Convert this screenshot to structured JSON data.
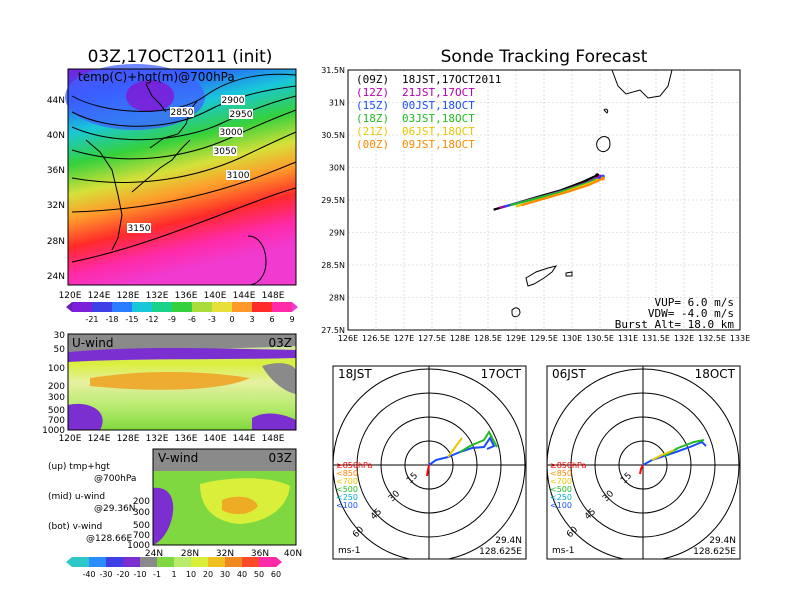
{
  "left_title": "03Z,17OCT2011 (init)",
  "right_title": "Sonde Tracking Forecast",
  "top_map": {
    "label": "temp(C)+hgt(m)@700hPa",
    "x_ticks": [
      "120E",
      "124E",
      "128E",
      "132E",
      "136E",
      "140E",
      "144E",
      "148E"
    ],
    "y_ticks": [
      "44N",
      "40N",
      "36N",
      "32N",
      "28N",
      "24N"
    ],
    "contour_labels": [
      "2850",
      "2900",
      "2950",
      "3000",
      "3050",
      "3100",
      "3150"
    ],
    "colorbar": [
      "-21",
      "-18",
      "-15",
      "-12",
      "-9",
      "-6",
      "-3",
      "0",
      "3",
      "6",
      "9"
    ]
  },
  "u_panel": {
    "label": "U-wind",
    "time": "03Z",
    "y_ticks": [
      "30",
      "50",
      "100",
      "200",
      "300",
      "500",
      "700",
      "1000"
    ],
    "x_ticks": [
      "120E",
      "124E",
      "128E",
      "132E",
      "136E",
      "140E",
      "144E",
      "148E"
    ]
  },
  "v_panel": {
    "label": "V-wind",
    "time": "03Z",
    "y_ticks": [
      "200",
      "300",
      "500",
      "700",
      "1000"
    ],
    "x_ticks": [
      "24N",
      "28N",
      "32N",
      "36N",
      "40N"
    ]
  },
  "legend_notes": [
    {
      "line1": "(up) tmp+hgt",
      "line2": "@700hPa"
    },
    {
      "line1": "(mid) u-wind",
      "line2": "@29.36N"
    },
    {
      "line1": "(bot) v-wind",
      "line2": "@128.66E"
    }
  ],
  "bottom_colorbar": [
    "-40",
    "-30",
    "-20",
    "-10",
    "-1",
    "1",
    "10",
    "20",
    "30",
    "40",
    "50",
    "60"
  ],
  "track_map": {
    "legend": [
      {
        "run": "(09Z)",
        "time": "18JST,17OCT2011",
        "color": "#000000"
      },
      {
        "run": "(12Z)",
        "time": "21JST,17OCT",
        "color": "#b000b0"
      },
      {
        "run": "(15Z)",
        "time": "00JST,18OCT",
        "color": "#1a4dff"
      },
      {
        "run": "(18Z)",
        "time": "03JST,18OCT",
        "color": "#22bb22"
      },
      {
        "run": "(21Z)",
        "time": "06JST,18OCT",
        "color": "#e8c800"
      },
      {
        "run": "(00Z)",
        "time": "09JST,18OCT",
        "color": "#ff8800"
      }
    ],
    "params": {
      "vup": "VUP= 6.0 m/s",
      "vdw": "VDW= -4.0 m/s",
      "burst": "Burst Alt= 18.0 km"
    }
  },
  "polar_left": {
    "time": "18JST",
    "date": "17OCT",
    "lat": "29.4N",
    "lon": "128.625E",
    "unit": "ms-1",
    "rings": [
      "15",
      "30",
      "45",
      "60"
    ]
  },
  "polar_right": {
    "time": "06JST",
    "date": "18OCT",
    "lat": "29.4N",
    "lon": "128.625E",
    "unit": "ms-1",
    "rings": [
      "15",
      "30",
      "45",
      "60"
    ]
  },
  "polar_legend": [
    {
      "text": "≥850hPa",
      "color": "#ff0000"
    },
    {
      "text": "<850",
      "color": "#ff8800"
    },
    {
      "text": "<700",
      "color": "#e8c800"
    },
    {
      "text": "<500",
      "color": "#22bb22"
    },
    {
      "text": "<250",
      "color": "#00b0d0"
    },
    {
      "text": "<100",
      "color": "#1a4dff"
    }
  ],
  "chart_data": [
    {
      "type": "line",
      "title": "Sonde Tracking Forecast",
      "x_ticks": [
        "126E",
        "126.5E",
        "127E",
        "127.5E",
        "128E",
        "128.5E",
        "129E",
        "129.5E",
        "130E",
        "130.5E",
        "131E",
        "131.5E",
        "132E",
        "132.5E",
        "133E"
      ],
      "y_ticks": [
        "31.5N",
        "31N",
        "30.5N",
        "30N",
        "29.5N",
        "29N",
        "28.5N",
        "28N",
        "27.5N"
      ],
      "xlim": [
        126,
        133
      ],
      "ylim": [
        27.5,
        31.5
      ],
      "series": [
        {
          "name": "(09Z)",
          "color": "#000000",
          "x": [
            128.6,
            129.0,
            129.4,
            129.8,
            130.2,
            130.45
          ],
          "y": [
            29.35,
            29.45,
            29.55,
            29.65,
            29.78,
            29.88
          ]
        },
        {
          "name": "(12Z)",
          "color": "#b000b0",
          "x": [
            128.7,
            129.1,
            129.5,
            129.9,
            130.3,
            130.5
          ],
          "y": [
            29.38,
            29.47,
            29.56,
            29.66,
            29.78,
            29.86
          ]
        },
        {
          "name": "(15Z)",
          "color": "#1a4dff",
          "x": [
            128.8,
            129.2,
            129.6,
            130.0,
            130.35,
            130.55
          ],
          "y": [
            29.4,
            29.49,
            29.58,
            29.68,
            29.79,
            29.86
          ]
        },
        {
          "name": "(18Z)",
          "color": "#22bb22",
          "x": [
            128.9,
            129.3,
            129.7,
            130.1,
            130.4
          ],
          "y": [
            29.42,
            29.51,
            29.6,
            29.71,
            29.8
          ]
        },
        {
          "name": "(21Z)",
          "color": "#e8c800",
          "x": [
            129.0,
            129.4,
            129.8,
            130.2,
            130.45
          ],
          "y": [
            29.4,
            29.5,
            29.6,
            29.72,
            29.8
          ]
        },
        {
          "name": "(00Z)",
          "color": "#ff8800",
          "x": [
            129.1,
            129.5,
            129.9,
            130.3,
            130.55
          ],
          "y": [
            29.42,
            29.52,
            29.62,
            29.73,
            29.83
          ]
        }
      ]
    }
  ]
}
